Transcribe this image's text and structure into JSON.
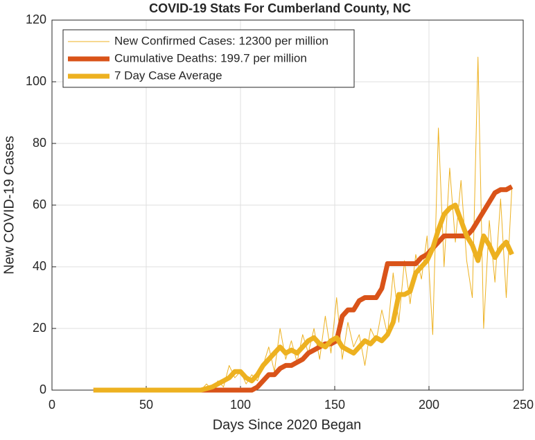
{
  "chart_data": {
    "type": "line",
    "title": "COVID-19 Stats For Cumberland County, NC",
    "x_label": "Days Since 2020 Began",
    "y_label": "New COVID-19 Cases",
    "x": [
      22,
      25,
      28,
      31,
      34,
      37,
      40,
      43,
      46,
      49,
      52,
      55,
      58,
      61,
      64,
      67,
      70,
      73,
      76,
      79,
      82,
      85,
      88,
      91,
      94,
      97,
      100,
      103,
      106,
      109,
      112,
      115,
      118,
      121,
      124,
      127,
      130,
      133,
      136,
      139,
      142,
      145,
      148,
      151,
      154,
      157,
      160,
      163,
      166,
      169,
      172,
      175,
      178,
      181,
      184,
      187,
      190,
      193,
      196,
      199,
      202,
      205,
      208,
      211,
      214,
      217,
      220,
      223,
      226,
      229,
      232,
      235,
      238,
      241,
      244
    ],
    "series": [
      {
        "name": "New Confirmed Cases: 12300 per million",
        "color": "#EDB120",
        "width": 1,
        "values": [
          0,
          0,
          0,
          0,
          0,
          0,
          0,
          0,
          0,
          0,
          0,
          0,
          0,
          0,
          0,
          0,
          0,
          0,
          0,
          0,
          2,
          0,
          3,
          1,
          8,
          4,
          6,
          2,
          5,
          3,
          8,
          14,
          6,
          20,
          10,
          16,
          9,
          18,
          12,
          20,
          10,
          24,
          12,
          30,
          10,
          22,
          14,
          18,
          8,
          20,
          16,
          26,
          18,
          38,
          22,
          42,
          28,
          44,
          36,
          50,
          18,
          85,
          40,
          72,
          48,
          68,
          42,
          30,
          108,
          20,
          55,
          35,
          62,
          30,
          66
        ]
      },
      {
        "name": "Cumulative Deaths: 199.7 per million",
        "color": "#D95319",
        "width": 7,
        "values": [
          0,
          0,
          0,
          0,
          0,
          0,
          0,
          0,
          0,
          0,
          0,
          0,
          0,
          0,
          0,
          0,
          0,
          0,
          0,
          0,
          0,
          0,
          0,
          0,
          0,
          0,
          0,
          0,
          0,
          1,
          3,
          5,
          5,
          7,
          8,
          8,
          9,
          10,
          12,
          13,
          14,
          15,
          15,
          16,
          24,
          26,
          26,
          29,
          30,
          30,
          30,
          33,
          41,
          41,
          41,
          41,
          41,
          41,
          43,
          44,
          46,
          48,
          50,
          50,
          50,
          50,
          50,
          52,
          55,
          58,
          61,
          64,
          65,
          65,
          66
        ]
      },
      {
        "name": "7 Day Case Average",
        "color": "#EDB120",
        "width": 7,
        "values": [
          0,
          0,
          0,
          0,
          0,
          0,
          0,
          0,
          0,
          0,
          0,
          0,
          0,
          0,
          0,
          0,
          0,
          0,
          0,
          0,
          0.5,
          1,
          2,
          3,
          4,
          6,
          6,
          4,
          3,
          5,
          8,
          10,
          12,
          14,
          12,
          13,
          12,
          14,
          16,
          17,
          15,
          14,
          16,
          17,
          14,
          13,
          12,
          14,
          16,
          15,
          17,
          16,
          18,
          22,
          31,
          31,
          32,
          38,
          40,
          42,
          46,
          52,
          57,
          59,
          60,
          55,
          50,
          47,
          42,
          50,
          47,
          43,
          46,
          48,
          44
        ]
      }
    ],
    "xlim": [
      0,
      250
    ],
    "xticks": [
      0,
      50,
      100,
      150,
      200,
      250
    ],
    "ylim": [
      0,
      120
    ],
    "yticks": [
      0,
      20,
      40,
      60,
      80,
      100,
      120
    ],
    "grid": true,
    "legend": "top-left"
  }
}
